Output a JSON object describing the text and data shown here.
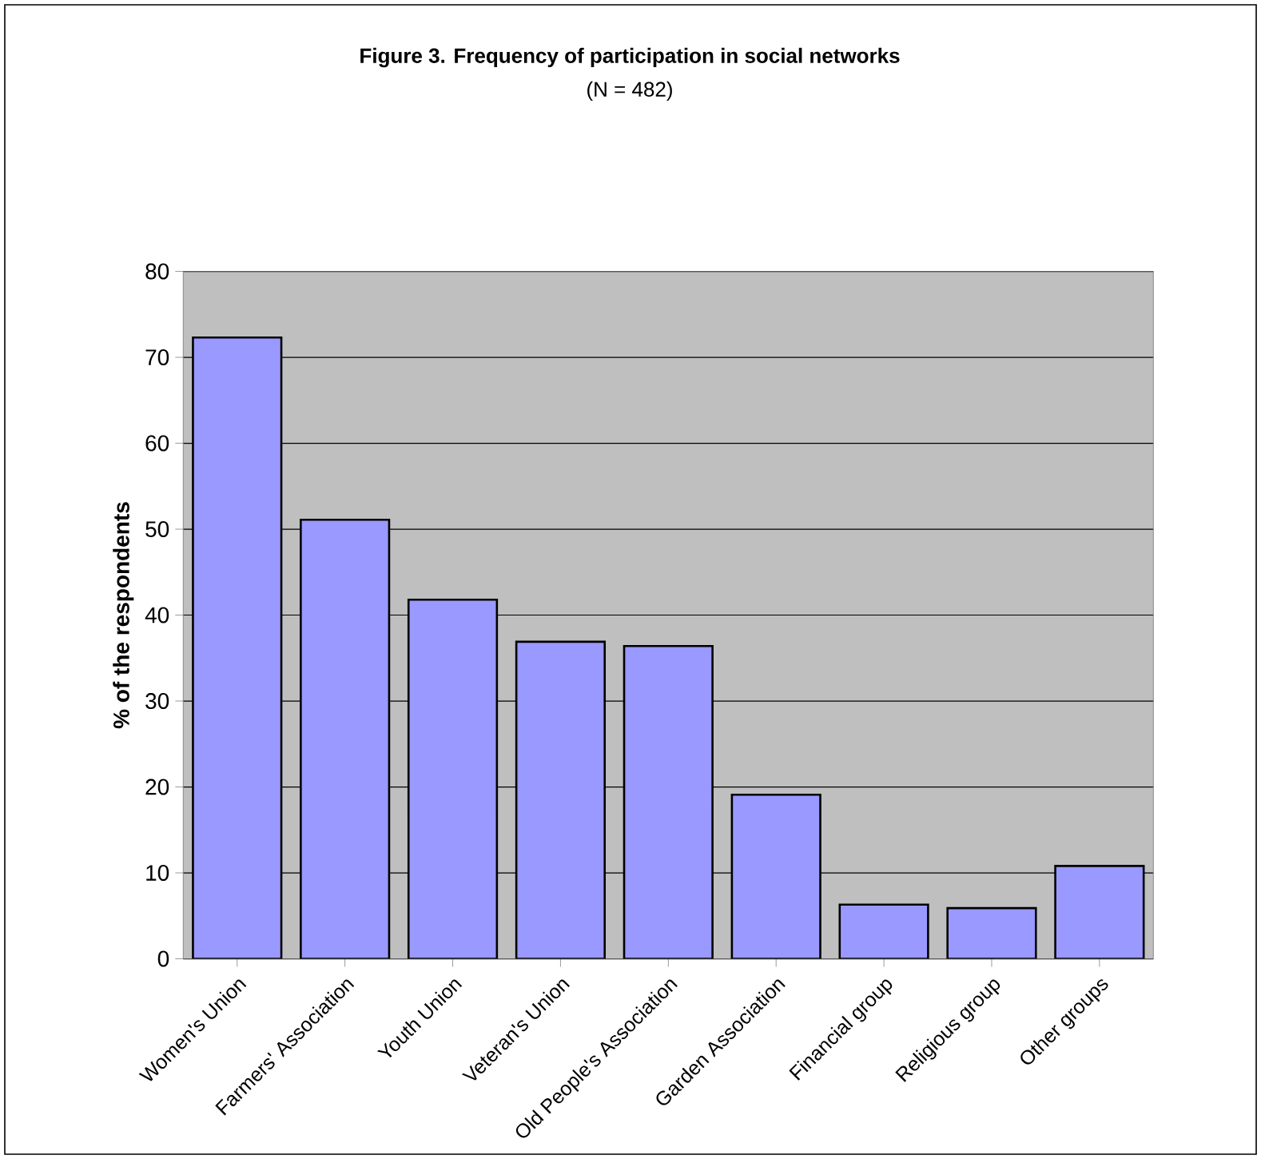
{
  "chart_data": {
    "type": "bar",
    "title": "Figure 3. Frequency of participation in social networks",
    "subtitle": "(N = 482)",
    "ylabel": "% of the respondents",
    "categories": [
      "Women's Union",
      "Farmers' Association",
      "Youth Union",
      "Veteran's Union",
      "Old People's Association",
      "Garden Association",
      "Financial group",
      "Religious group",
      "Other groups"
    ],
    "values": [
      72.3,
      51.1,
      41.8,
      36.9,
      36.4,
      19.1,
      6.3,
      5.9,
      10.8
    ],
    "color": "#9999ff",
    "ylim": [
      0,
      80
    ],
    "yticks": [
      0,
      10,
      20,
      30,
      40,
      50,
      60,
      70,
      80
    ],
    "grid": "y"
  }
}
